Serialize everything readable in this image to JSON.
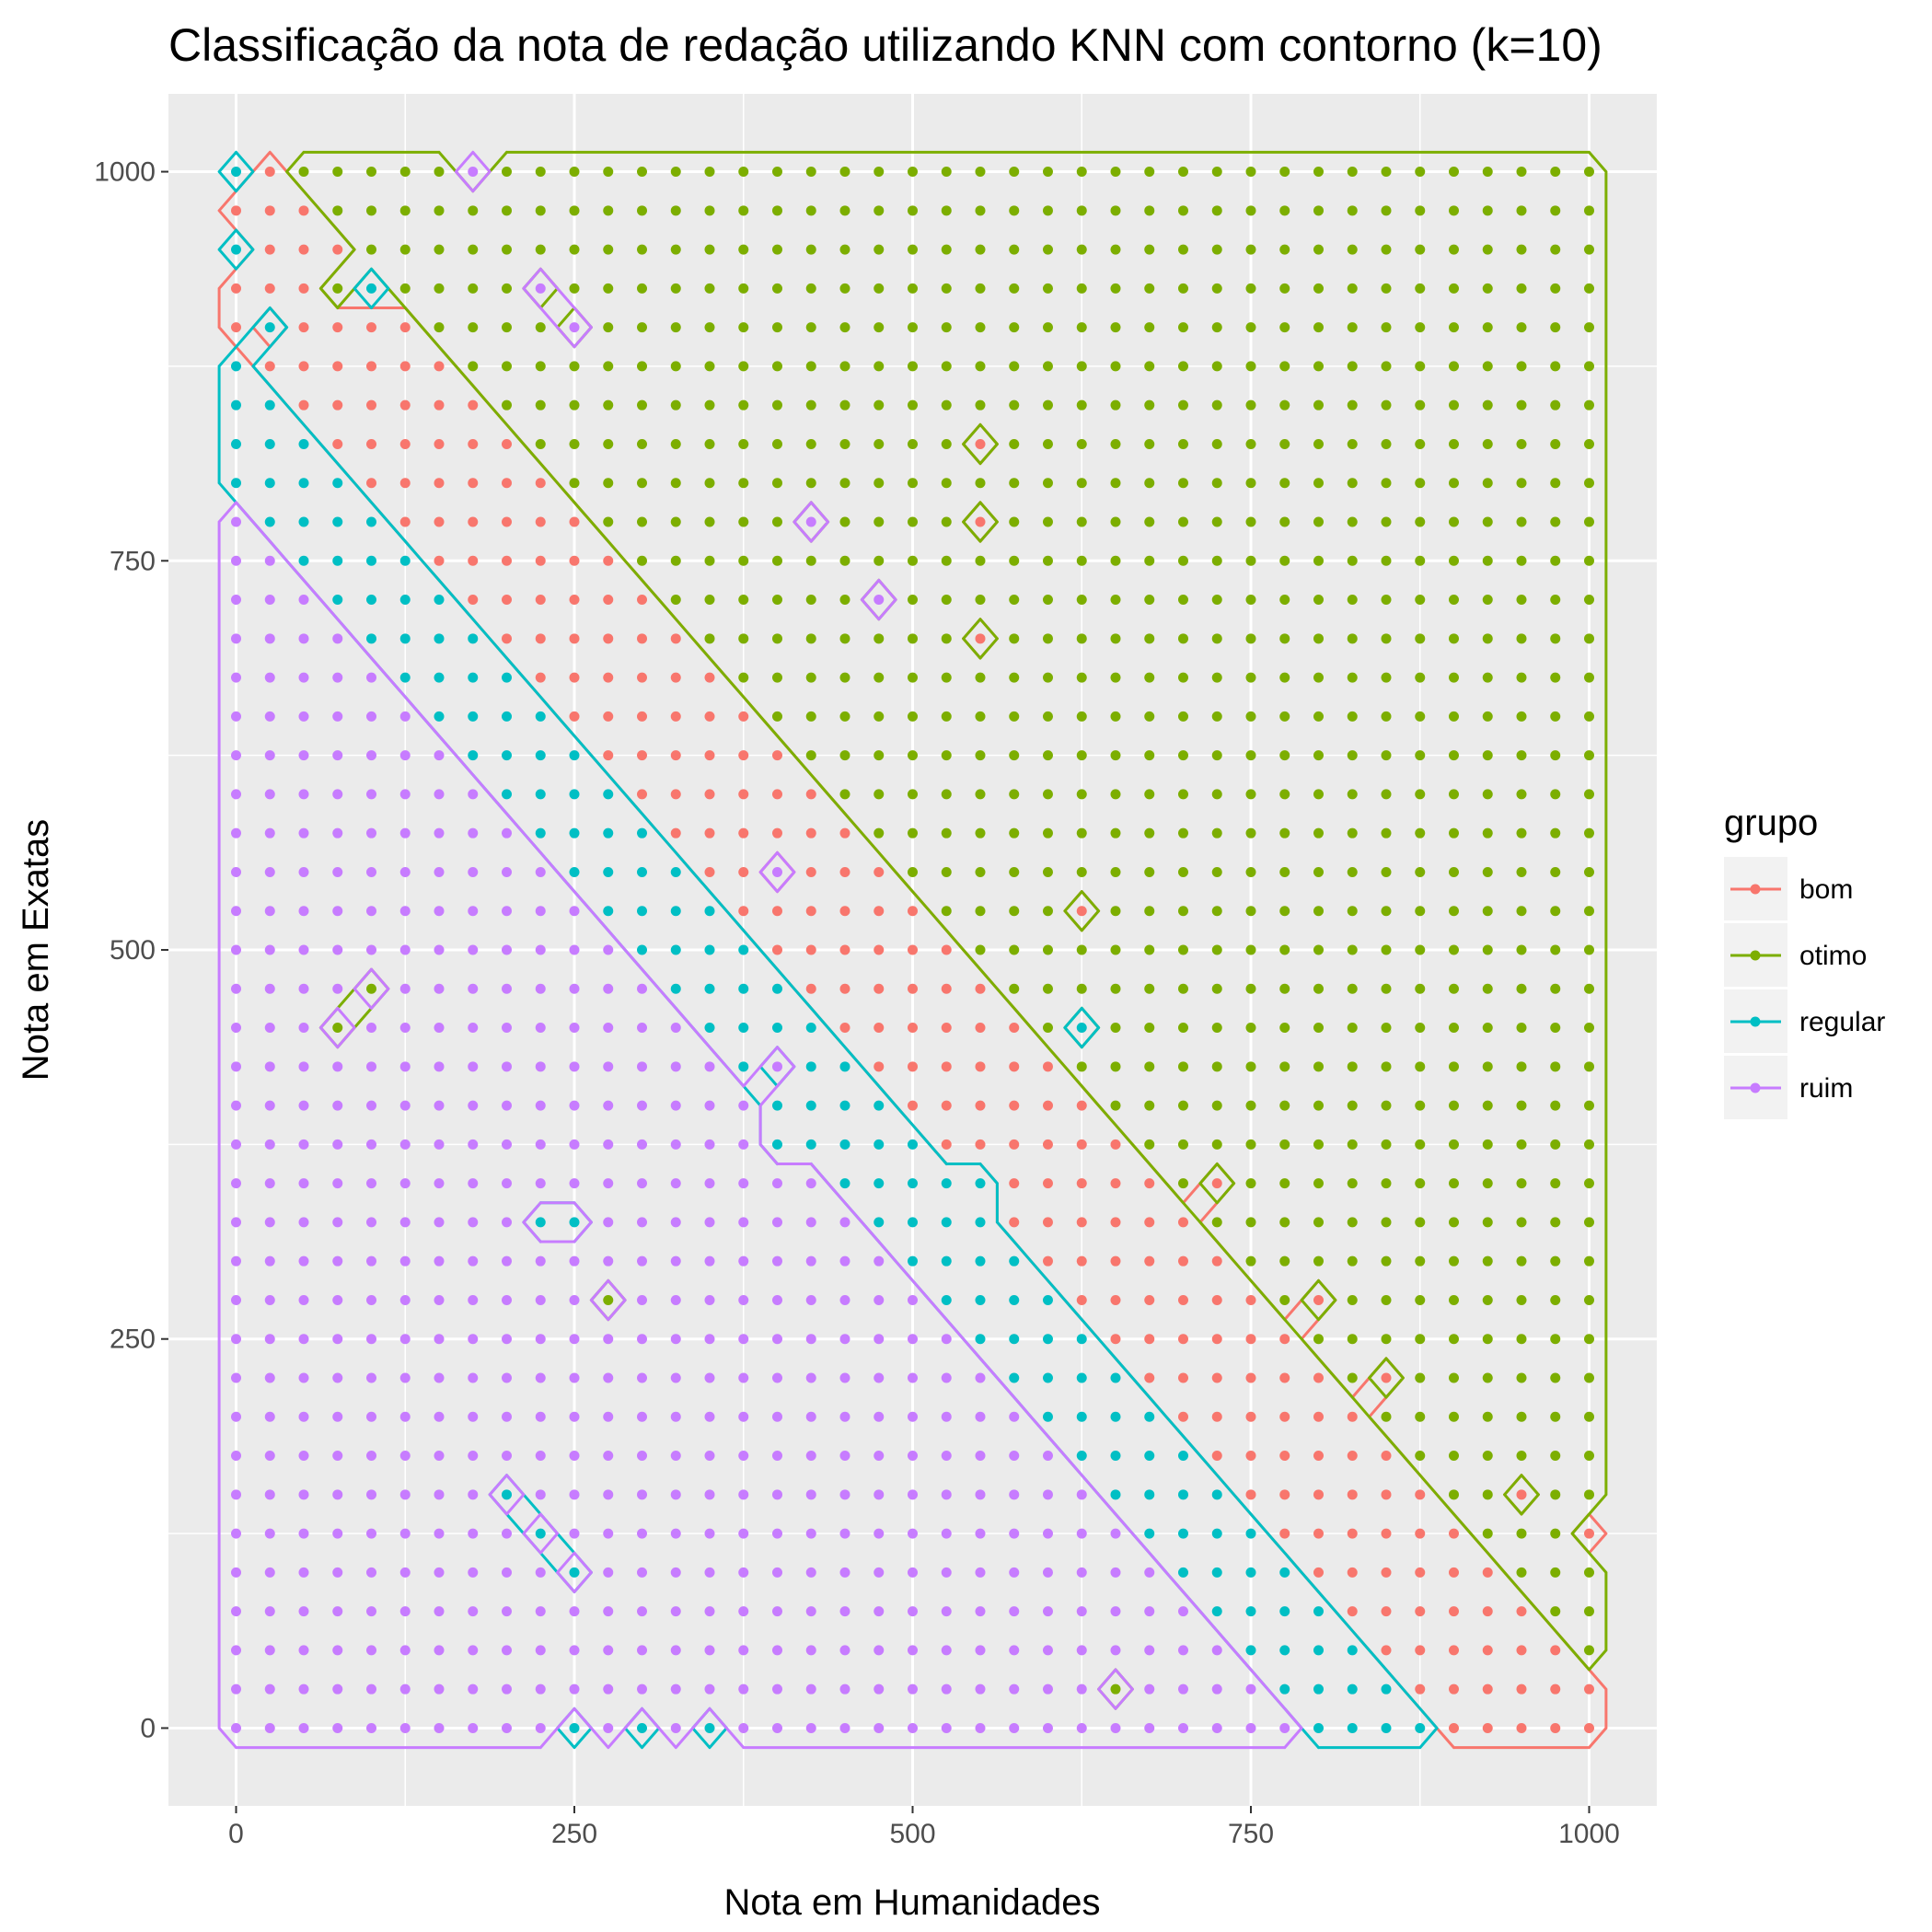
{
  "chart_data": {
    "type": "scatter",
    "title": "Classificação da nota de redação utilizando KNN com contorno (k=10)",
    "xlabel": "Nota em Humanidades",
    "ylabel": "Nota em Exatas",
    "xlim": [
      -50,
      1050
    ],
    "ylim": [
      -50,
      1050
    ],
    "x_ticks": [
      0,
      250,
      500,
      750,
      1000
    ],
    "y_ticks": [
      0,
      250,
      500,
      750,
      1000
    ],
    "grid": true,
    "legend": {
      "title": "grupo",
      "placement": "right",
      "entries": [
        "bom",
        "otimo",
        "regular",
        "ruim"
      ]
    },
    "colors": {
      "bom": "#F8766D",
      "otimo": "#7CAE00",
      "regular": "#00BFC4",
      "ruim": "#C77CFF"
    },
    "grid_points": {
      "x_start": 0,
      "x_end": 1000,
      "y_start": 0,
      "y_end": 1000,
      "step": 25,
      "description_rule": "class assigned by KNN decision regions"
    },
    "regions": [
      {
        "class": "otimo",
        "rule": "x + y >= 1050 (upper-right)"
      },
      {
        "class": "bom",
        "rule": "band 880 <= x + y < 1050"
      },
      {
        "class": "regular",
        "rule": "band 780 <= x + y < 880"
      },
      {
        "class": "ruim",
        "rule": "x + y < 780 (lower-left)"
      }
    ],
    "islands": [
      {
        "class": "bom",
        "x": 550,
        "y": 825
      },
      {
        "class": "bom",
        "x": 550,
        "y": 775
      },
      {
        "class": "bom",
        "x": 550,
        "y": 700
      },
      {
        "class": "bom",
        "x": 625,
        "y": 525
      },
      {
        "class": "bom",
        "x": 725,
        "y": 350
      },
      {
        "class": "bom",
        "x": 800,
        "y": 275
      },
      {
        "class": "bom",
        "x": 850,
        "y": 225
      },
      {
        "class": "bom",
        "x": 950,
        "y": 150
      },
      {
        "class": "bom",
        "x": 1000,
        "y": 125
      },
      {
        "class": "bom",
        "x": 650,
        "y": 375
      },
      {
        "class": "otimo",
        "x": 650,
        "y": 25
      },
      {
        "class": "otimo",
        "x": 100,
        "y": 475
      },
      {
        "class": "otimo",
        "x": 75,
        "y": 450
      },
      {
        "class": "otimo",
        "x": 275,
        "y": 275
      },
      {
        "class": "otimo",
        "x": 75,
        "y": 925
      },
      {
        "class": "regular",
        "x": 200,
        "y": 150
      },
      {
        "class": "regular",
        "x": 225,
        "y": 125
      },
      {
        "class": "regular",
        "x": 250,
        "y": 100
      },
      {
        "class": "regular",
        "x": 250,
        "y": 0
      },
      {
        "class": "regular",
        "x": 300,
        "y": 0
      },
      {
        "class": "regular",
        "x": 350,
        "y": 0
      },
      {
        "class": "regular",
        "x": 225,
        "y": 325
      },
      {
        "class": "regular",
        "x": 250,
        "y": 325
      },
      {
        "class": "regular",
        "x": 400,
        "y": 375
      },
      {
        "class": "regular",
        "x": 450,
        "y": 375
      },
      {
        "class": "regular",
        "x": 500,
        "y": 350
      },
      {
        "class": "regular",
        "x": 550,
        "y": 350
      },
      {
        "class": "regular",
        "x": 625,
        "y": 450
      },
      {
        "class": "regular",
        "x": 0,
        "y": 1000
      },
      {
        "class": "regular",
        "x": 0,
        "y": 950
      },
      {
        "class": "regular",
        "x": 25,
        "y": 900
      },
      {
        "class": "regular",
        "x": 100,
        "y": 925
      },
      {
        "class": "ruim",
        "x": 175,
        "y": 325
      },
      {
        "class": "ruim",
        "x": 400,
        "y": 425
      },
      {
        "class": "ruim",
        "x": 175,
        "y": 1000
      },
      {
        "class": "ruim",
        "x": 225,
        "y": 925
      },
      {
        "class": "ruim",
        "x": 250,
        "y": 900
      },
      {
        "class": "ruim",
        "x": 425,
        "y": 775
      },
      {
        "class": "ruim",
        "x": 475,
        "y": 725
      },
      {
        "class": "ruim",
        "x": 400,
        "y": 550
      }
    ]
  }
}
